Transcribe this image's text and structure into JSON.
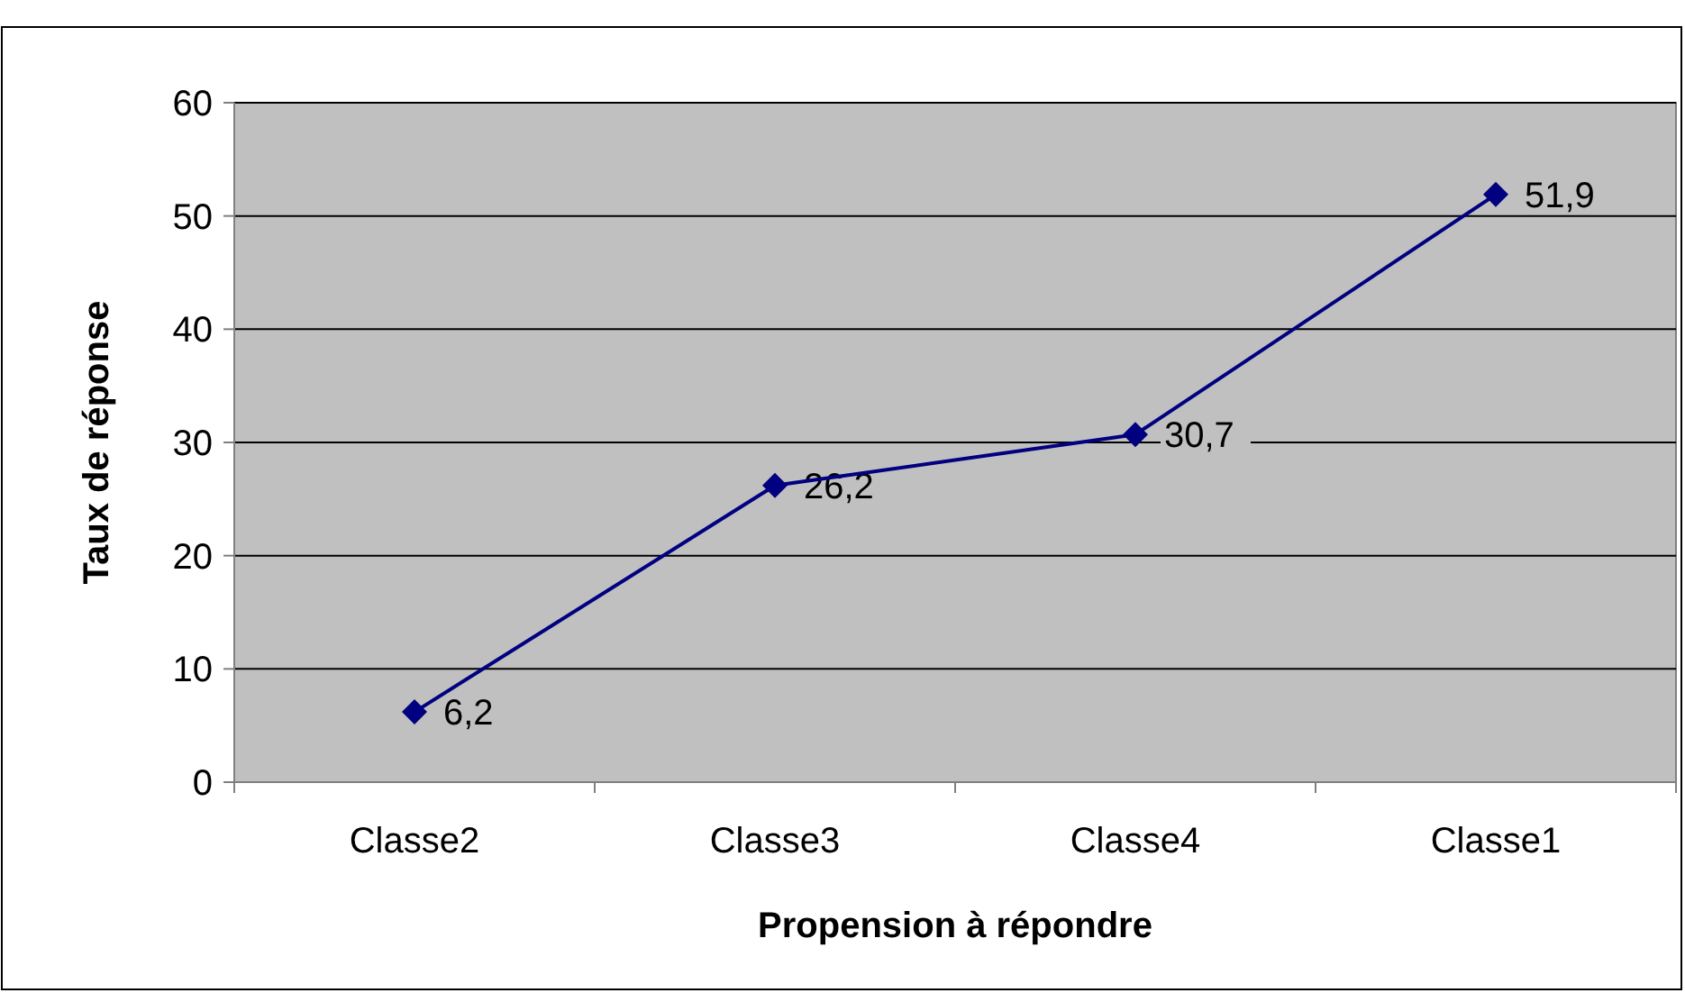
{
  "chart_data": {
    "type": "line",
    "xlabel": "Propension à répondre",
    "ylabel": "Taux de réponse",
    "categories": [
      "Classe2",
      "Classe3",
      "Classe4",
      "Classe1"
    ],
    "series": [
      {
        "color": "#000080",
        "values": [
          6.2,
          26.2,
          30.7,
          51.9
        ],
        "value_labels": [
          "6,2",
          "26,2",
          "30,7",
          "51,9"
        ]
      }
    ],
    "ylim": [
      0,
      60
    ],
    "yticks": [
      0,
      10,
      20,
      30,
      40,
      50,
      60
    ],
    "grid": "y",
    "marker": "diamond",
    "line_style": "solid"
  }
}
